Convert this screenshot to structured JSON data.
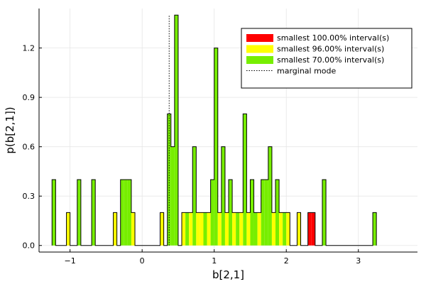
{
  "chart_data": {
    "type": "histogram-step",
    "title": "",
    "xlabel": "b[2,1]",
    "ylabel": "p(b[2,1])",
    "xlim": [
      -1.43,
      3.82
    ],
    "ylim": [
      -0.04,
      1.44
    ],
    "xticks": [
      -1,
      0,
      1,
      2,
      3
    ],
    "xtick_labels": [
      "−1",
      "0",
      "1",
      "2",
      "3"
    ],
    "yticks": [
      0.0,
      0.3,
      0.6,
      0.9,
      1.2
    ],
    "ytick_labels": [
      "0.0",
      "0.3",
      "0.6",
      "0.9",
      "1.2"
    ],
    "grid": true,
    "legend_position": "top-right",
    "legend": [
      {
        "label": "smallest 100.00% interval(s)",
        "color": "#ff0000",
        "kind": "fill"
      },
      {
        "label": "smallest 96.00% interval(s)",
        "color": "#ffff00",
        "kind": "fill"
      },
      {
        "label": "smallest 70.00% interval(s)",
        "color": "#77ee00",
        "kind": "fill"
      },
      {
        "label": "marginal mode",
        "color": "#000000",
        "kind": "dotted-line"
      }
    ],
    "colors": {
      "p100": "#ff0000",
      "p96": "#ffff00",
      "p70": "#77ee00",
      "outline": "#000000"
    },
    "bin_width": 0.05,
    "x_start": -1.25,
    "densities": [
      0.4,
      0,
      0,
      0,
      0.2,
      0,
      0,
      0.4,
      0,
      0,
      0,
      0.4,
      0,
      0,
      0,
      0,
      0,
      0.2,
      0,
      0.4,
      0.4,
      0.4,
      0.2,
      0,
      0,
      0,
      0,
      0,
      0,
      0,
      0.2,
      0,
      0.8,
      0.6,
      1.4,
      0,
      0.2,
      0.2,
      0.2,
      0.6,
      0.2,
      0.2,
      0.2,
      0.2,
      0.4,
      1.2,
      0.2,
      0.6,
      0.2,
      0.4,
      0.2,
      0.2,
      0.2,
      0.8,
      0.2,
      0.4,
      0.2,
      0.2,
      0.4,
      0.4,
      0.6,
      0.2,
      0.4,
      0.2,
      0.2,
      0.2,
      0,
      0,
      0.2,
      0,
      0,
      0.2,
      0.2,
      0,
      0,
      0.4,
      0,
      0,
      0,
      0,
      0,
      0,
      0,
      0,
      0,
      0,
      0,
      0,
      0,
      0.2
    ],
    "bins_96_ranges": [
      [
        4,
        6
      ],
      [
        17,
        18
      ],
      [
        22,
        23
      ],
      [
        30,
        31
      ],
      [
        36,
        37
      ],
      [
        38,
        39
      ],
      [
        40,
        42
      ],
      [
        43,
        44
      ],
      [
        46,
        47
      ],
      [
        48,
        49
      ],
      [
        50,
        51
      ],
      [
        52,
        53
      ],
      [
        54,
        55
      ],
      [
        57,
        58
      ],
      [
        61,
        62
      ],
      [
        63,
        64
      ],
      [
        65,
        66
      ],
      [
        68,
        69
      ],
      [
        71,
        72
      ],
      [
        74,
        75
      ]
    ],
    "bins_100_ranges": [
      [
        71,
        73
      ]
    ],
    "marginal_mode": 0.375
  }
}
